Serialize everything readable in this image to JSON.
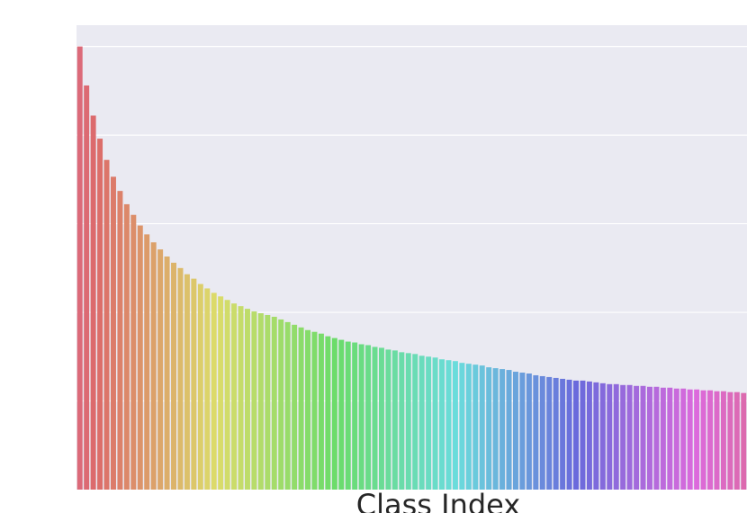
{
  "chart_data": {
    "type": "bar",
    "xlabel": "Class Index",
    "palette": "husl",
    "categories": [
      null,
      null,
      null,
      null,
      null,
      null,
      null,
      null,
      null,
      null,
      null,
      null,
      null,
      null,
      null,
      null,
      null,
      null,
      null,
      null,
      null,
      null,
      null,
      null,
      null,
      null,
      null,
      null,
      null,
      null,
      null,
      null,
      null,
      null,
      null,
      null,
      null,
      null,
      null,
      null,
      null,
      null,
      null,
      null,
      null,
      null,
      null,
      null,
      null,
      null,
      null,
      null,
      null,
      null,
      null,
      null,
      null,
      null,
      null,
      null,
      null,
      null,
      null,
      null,
      null,
      null,
      null,
      null,
      null,
      null,
      null,
      null,
      null,
      null,
      null,
      null,
      null,
      null,
      null,
      null,
      null,
      null,
      null,
      null,
      null,
      null,
      null,
      null,
      null,
      null,
      null,
      null,
      null,
      null,
      null,
      null,
      null,
      null,
      null,
      null
    ],
    "values": [
      5.0,
      4.56,
      4.22,
      3.96,
      3.72,
      3.53,
      3.37,
      3.22,
      3.1,
      2.98,
      2.88,
      2.79,
      2.71,
      2.63,
      2.56,
      2.5,
      2.43,
      2.38,
      2.32,
      2.27,
      2.22,
      2.18,
      2.14,
      2.1,
      2.07,
      2.04,
      2.01,
      1.99,
      1.97,
      1.95,
      1.92,
      1.89,
      1.86,
      1.83,
      1.8,
      1.78,
      1.76,
      1.73,
      1.71,
      1.69,
      1.67,
      1.66,
      1.64,
      1.63,
      1.61,
      1.6,
      1.58,
      1.57,
      1.55,
      1.54,
      1.53,
      1.51,
      1.5,
      1.49,
      1.47,
      1.46,
      1.45,
      1.43,
      1.42,
      1.41,
      1.4,
      1.38,
      1.37,
      1.36,
      1.35,
      1.33,
      1.32,
      1.31,
      1.29,
      1.28,
      1.27,
      1.26,
      1.25,
      1.24,
      1.23,
      1.23,
      1.22,
      1.21,
      1.2,
      1.19,
      1.19,
      1.18,
      1.18,
      1.17,
      1.17,
      1.16,
      1.16,
      1.15,
      1.15,
      1.14,
      1.14,
      1.13,
      1.13,
      1.12,
      1.12,
      1.11,
      1.11,
      1.1,
      1.1,
      1.09
    ],
    "ylim": [
      0,
      5.24
    ],
    "gridlines": [
      1,
      2,
      3,
      4,
      5
    ],
    "grid": true
  }
}
